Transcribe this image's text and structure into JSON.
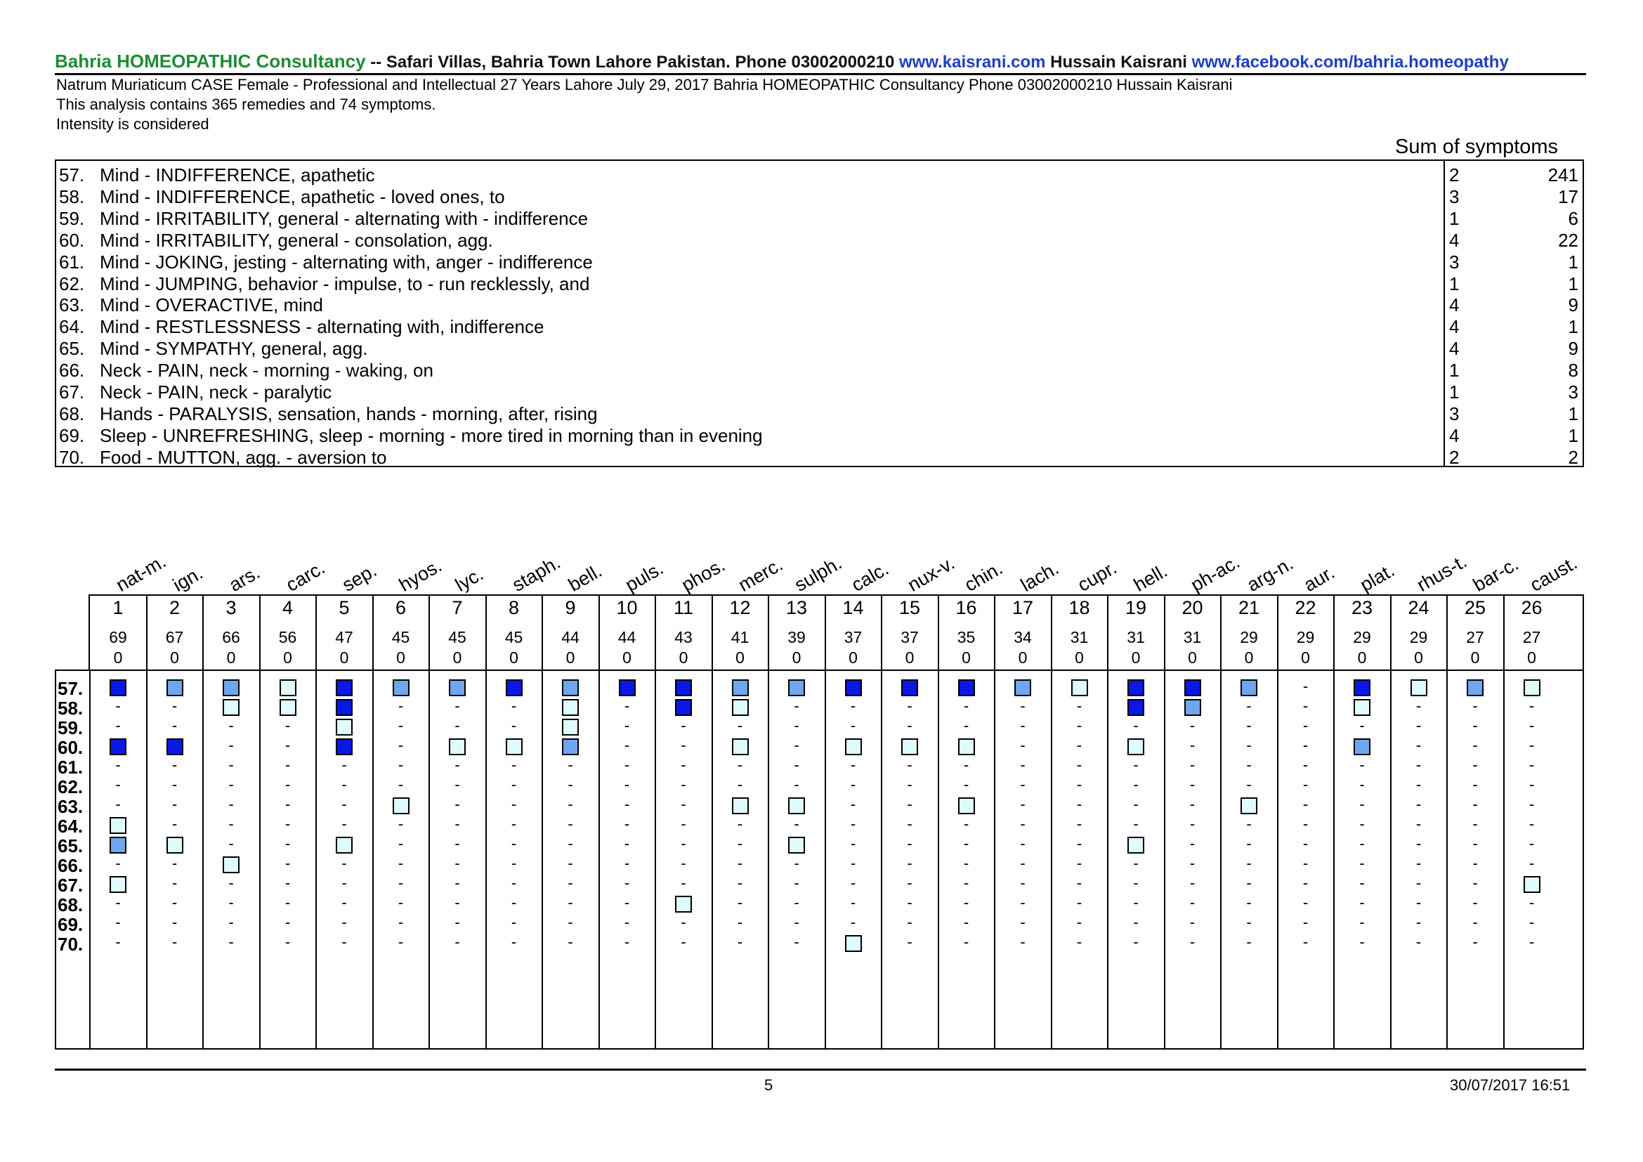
{
  "header": {
    "brand": "Bahria HOMEOPATHIC Consultancy",
    "address": " -- Safari Villas, Bahria Town Lahore Pakistan. Phone 03002000210 ",
    "website": "www.kaisrani.com",
    "author": " Hussain Kaisrani ",
    "facebook": "www.facebook.com/bahria.homeopathy"
  },
  "info": {
    "case_line": "Natrum Muriaticum CASE Female -  Professional and Intellectual 27 Years Lahore July 29, 2017 Bahria HOMEOPATHIC Consultancy Phone 03002000210 Hussain Kaisrani",
    "analysis_line": "This analysis contains 365 remedies and 74 symptoms.",
    "intensity_line": "Intensity is considered"
  },
  "sum_label": "Sum of symptoms",
  "symptoms": [
    {
      "num": "57.",
      "text": "Mind - INDIFFERENCE, apathetic",
      "degree": "2",
      "count": "241"
    },
    {
      "num": "58.",
      "text": "Mind - INDIFFERENCE, apathetic - loved ones, to",
      "degree": "3",
      "count": "17"
    },
    {
      "num": "59.",
      "text": "Mind - IRRITABILITY, general - alternating with - indifference",
      "degree": "1",
      "count": "6"
    },
    {
      "num": "60.",
      "text": "Mind - IRRITABILITY, general - consolation, agg.",
      "degree": "4",
      "count": "22"
    },
    {
      "num": "61.",
      "text": "Mind - JOKING, jesting - alternating with, anger - indifference",
      "degree": "3",
      "count": "1"
    },
    {
      "num": "62.",
      "text": "Mind - JUMPING, behavior - impulse, to - run recklessly, and",
      "degree": "1",
      "count": "1"
    },
    {
      "num": "63.",
      "text": "Mind - OVERACTIVE, mind",
      "degree": "4",
      "count": "9"
    },
    {
      "num": "64.",
      "text": "Mind - RESTLESSNESS - alternating with, indifference",
      "degree": "4",
      "count": "1"
    },
    {
      "num": "65.",
      "text": "Mind - SYMPATHY, general, agg.",
      "degree": "4",
      "count": "9"
    },
    {
      "num": "66.",
      "text": "Neck - PAIN, neck - morning - waking, on",
      "degree": "1",
      "count": "8"
    },
    {
      "num": "67.",
      "text": "Neck - PAIN, neck - paralytic",
      "degree": "1",
      "count": "3"
    },
    {
      "num": "68.",
      "text": "Hands - PARALYSIS, sensation, hands - morning, after, rising",
      "degree": "3",
      "count": "1"
    },
    {
      "num": "69.",
      "text": "Sleep - UNREFRESHING, sleep - morning - more tired in morning than in evening",
      "degree": "4",
      "count": "1"
    },
    {
      "num": "70.",
      "text": "Food - MUTTON, agg. - aversion to",
      "degree": "2",
      "count": "2"
    }
  ],
  "row_labels": [
    "57.",
    "58.",
    "59.",
    "60.",
    "61.",
    "62.",
    "63.",
    "64.",
    "65.",
    "66.",
    "67.",
    "68.",
    "69.",
    "70."
  ],
  "remedies": [
    {
      "name": "nat-m.",
      "rank": "1",
      "score": "69",
      "extra": "0"
    },
    {
      "name": "ign.",
      "rank": "2",
      "score": "67",
      "extra": "0"
    },
    {
      "name": "ars.",
      "rank": "3",
      "score": "66",
      "extra": "0"
    },
    {
      "name": "carc.",
      "rank": "4",
      "score": "56",
      "extra": "0"
    },
    {
      "name": "sep.",
      "rank": "5",
      "score": "47",
      "extra": "0"
    },
    {
      "name": "hyos.",
      "rank": "6",
      "score": "45",
      "extra": "0"
    },
    {
      "name": "lyc.",
      "rank": "7",
      "score": "45",
      "extra": "0"
    },
    {
      "name": "staph.",
      "rank": "8",
      "score": "45",
      "extra": "0"
    },
    {
      "name": "bell.",
      "rank": "9",
      "score": "44",
      "extra": "0"
    },
    {
      "name": "puls.",
      "rank": "10",
      "score": "44",
      "extra": "0"
    },
    {
      "name": "phos.",
      "rank": "11",
      "score": "43",
      "extra": "0"
    },
    {
      "name": "merc.",
      "rank": "12",
      "score": "41",
      "extra": "0"
    },
    {
      "name": "sulph.",
      "rank": "13",
      "score": "39",
      "extra": "0"
    },
    {
      "name": "calc.",
      "rank": "14",
      "score": "37",
      "extra": "0"
    },
    {
      "name": "nux-v.",
      "rank": "15",
      "score": "37",
      "extra": "0"
    },
    {
      "name": "chin.",
      "rank": "16",
      "score": "35",
      "extra": "0"
    },
    {
      "name": "lach.",
      "rank": "17",
      "score": "34",
      "extra": "0"
    },
    {
      "name": "cupr.",
      "rank": "18",
      "score": "31",
      "extra": "0"
    },
    {
      "name": "hell.",
      "rank": "19",
      "score": "31",
      "extra": "0"
    },
    {
      "name": "ph-ac.",
      "rank": "20",
      "score": "31",
      "extra": "0"
    },
    {
      "name": "arg-n.",
      "rank": "21",
      "score": "29",
      "extra": "0"
    },
    {
      "name": "aur.",
      "rank": "22",
      "score": "29",
      "extra": "0"
    },
    {
      "name": "plat.",
      "rank": "23",
      "score": "29",
      "extra": "0"
    },
    {
      "name": "rhus-t.",
      "rank": "24",
      "score": "29",
      "extra": "0"
    },
    {
      "name": "bar-c.",
      "rank": "25",
      "score": "27",
      "extra": "0"
    },
    {
      "name": "caust.",
      "rank": "26",
      "score": "27",
      "extra": "0"
    }
  ],
  "grades": [
    [
      4,
      2,
      2,
      1,
      4,
      2,
      2,
      4,
      2,
      4,
      4,
      2,
      2,
      4,
      4,
      4,
      2,
      1,
      4,
      4,
      2,
      0,
      4,
      1,
      2,
      1
    ],
    [
      0,
      0,
      1,
      1,
      4,
      0,
      0,
      0,
      1,
      0,
      4,
      1,
      0,
      0,
      0,
      0,
      0,
      0,
      4,
      2,
      0,
      0,
      1,
      0,
      0,
      0
    ],
    [
      0,
      0,
      0,
      0,
      1,
      0,
      0,
      0,
      1,
      0,
      0,
      0,
      0,
      0,
      0,
      0,
      0,
      0,
      0,
      0,
      0,
      0,
      0,
      0,
      0,
      0
    ],
    [
      4,
      4,
      0,
      0,
      4,
      0,
      1,
      1,
      2,
      0,
      0,
      1,
      0,
      1,
      1,
      1,
      0,
      0,
      1,
      0,
      0,
      0,
      2,
      0,
      0,
      0
    ],
    [
      0,
      0,
      0,
      0,
      0,
      0,
      0,
      0,
      0,
      0,
      0,
      0,
      0,
      0,
      0,
      0,
      0,
      0,
      0,
      0,
      0,
      0,
      0,
      0,
      0,
      0
    ],
    [
      0,
      0,
      0,
      0,
      0,
      0,
      0,
      0,
      0,
      0,
      0,
      0,
      0,
      0,
      0,
      0,
      0,
      0,
      0,
      0,
      0,
      0,
      0,
      0,
      0,
      0
    ],
    [
      0,
      0,
      0,
      0,
      0,
      1,
      0,
      0,
      0,
      0,
      0,
      1,
      1,
      0,
      0,
      1,
      0,
      0,
      0,
      0,
      1,
      0,
      0,
      0,
      0,
      0
    ],
    [
      1,
      0,
      0,
      0,
      0,
      0,
      0,
      0,
      0,
      0,
      0,
      0,
      0,
      0,
      0,
      0,
      0,
      0,
      0,
      0,
      0,
      0,
      0,
      0,
      0,
      0
    ],
    [
      2,
      1,
      0,
      0,
      1,
      0,
      0,
      0,
      0,
      0,
      0,
      0,
      1,
      0,
      0,
      0,
      0,
      0,
      1,
      0,
      0,
      0,
      0,
      0,
      0,
      0
    ],
    [
      0,
      0,
      1,
      0,
      0,
      0,
      0,
      0,
      0,
      0,
      0,
      0,
      0,
      0,
      0,
      0,
      0,
      0,
      0,
      0,
      0,
      0,
      0,
      0,
      0,
      0
    ],
    [
      1,
      0,
      0,
      0,
      0,
      0,
      0,
      0,
      0,
      0,
      0,
      0,
      0,
      0,
      0,
      0,
      0,
      0,
      0,
      0,
      0,
      0,
      0,
      0,
      0,
      1
    ],
    [
      0,
      0,
      0,
      0,
      0,
      0,
      0,
      0,
      0,
      0,
      1,
      0,
      0,
      0,
      0,
      0,
      0,
      0,
      0,
      0,
      0,
      0,
      0,
      0,
      0,
      0
    ],
    [
      0,
      0,
      0,
      0,
      0,
      0,
      0,
      0,
      0,
      0,
      0,
      0,
      0,
      0,
      0,
      0,
      0,
      0,
      0,
      0,
      0,
      0,
      0,
      0,
      0,
      0
    ],
    [
      0,
      0,
      0,
      0,
      0,
      0,
      0,
      0,
      0,
      0,
      0,
      0,
      0,
      1,
      0,
      0,
      0,
      0,
      0,
      0,
      0,
      0,
      0,
      0,
      0,
      0
    ]
  ],
  "grade_colors": {
    "1": "#e0fbfb",
    "2": "#6fa6ec",
    "4": "#0a18e6"
  },
  "dash_symbol": "-",
  "footer": {
    "page": "5",
    "datetime": "30/07/2017 16:51"
  }
}
